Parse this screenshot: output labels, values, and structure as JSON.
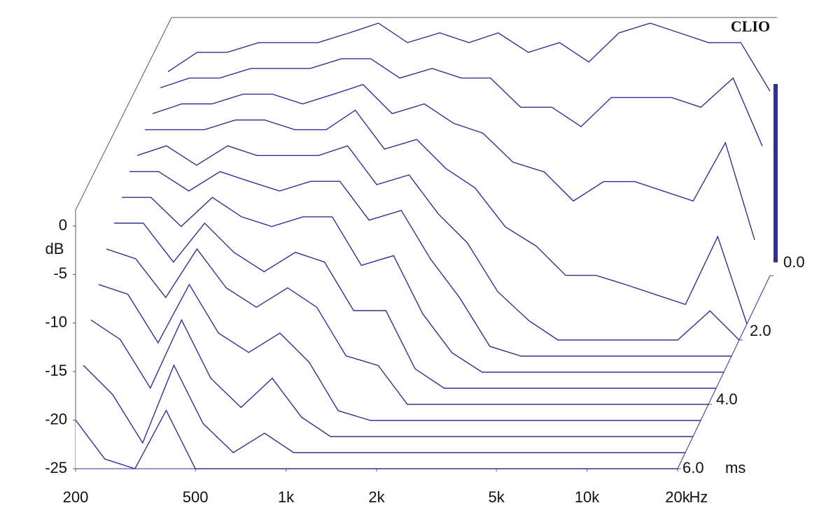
{
  "chart_data": {
    "type": "waterfall",
    "watermark": "CLIO",
    "color": "#2e3192",
    "x_unit": "Hz",
    "y_unit": "dB",
    "z_unit": "ms",
    "log_x": true,
    "x": [
      200,
      250,
      315,
      400,
      500,
      630,
      800,
      1000,
      1250,
      1600,
      2000,
      2500,
      3150,
      4000,
      5000,
      6300,
      8000,
      10000,
      12500,
      16000,
      20000
    ],
    "xlim": [
      200,
      20000
    ],
    "xticks": [
      200,
      500,
      {
        "value": 1000,
        "label": "1k"
      },
      {
        "value": 2000,
        "label": "2k"
      },
      {
        "value": 5000,
        "label": "5k"
      },
      {
        "value": 10000,
        "label": "10k"
      },
      {
        "value": 20000,
        "label": "20k"
      }
    ],
    "ylim": [
      -25,
      0
    ],
    "yticks": [
      0,
      -5,
      -10,
      -15,
      -20,
      -25
    ],
    "zlim": [
      0,
      6
    ],
    "zticks": [
      {
        "value": 0,
        "label": "0.0"
      },
      {
        "value": 2,
        "label": "2.0"
      },
      {
        "value": 4,
        "label": "4.0"
      },
      {
        "value": 6,
        "label": "6.0"
      }
    ],
    "z": [
      0,
      0.5,
      1,
      1.5,
      2,
      2.5,
      3,
      3.5,
      4,
      4.5,
      5,
      5.5,
      6
    ],
    "series": [
      {
        "values": [
          -4,
          -2,
          -2,
          -1,
          -1,
          -1,
          0,
          1,
          -1,
          0,
          -1,
          0,
          -2,
          -1,
          -3,
          0,
          1,
          0,
          -1,
          -1,
          -6
        ]
      },
      {
        "values": [
          -4,
          -3,
          -3,
          -2,
          -2,
          -2,
          -1,
          -1,
          -3,
          -2,
          -3,
          -3,
          -6,
          -6,
          -8,
          -5,
          -5,
          -5,
          -6,
          -3,
          -10
        ]
      },
      {
        "values": [
          -5,
          -4,
          -4,
          -3,
          -3,
          -4,
          -3,
          -2,
          -5,
          -4,
          -6,
          -7,
          -10,
          -11,
          -14,
          -12,
          -12,
          -13,
          -14,
          -8,
          -18
        ]
      },
      {
        "values": [
          -5,
          -5,
          -5,
          -4,
          -4,
          -5,
          -5,
          -3,
          -7,
          -6,
          -9,
          -11,
          -15,
          -17,
          -20,
          -20,
          -21,
          -22,
          -23,
          -16,
          -25
        ]
      },
      {
        "values": [
          -6,
          -5,
          -7,
          -5,
          -6,
          -6,
          -6,
          -5,
          -9,
          -8,
          -12,
          -15,
          -20,
          -23,
          -25,
          -25,
          -25,
          -25,
          -25,
          -22,
          -25
        ]
      },
      {
        "values": [
          -6,
          -6,
          -8,
          -6,
          -7,
          -8,
          -7,
          -7,
          -11,
          -10,
          -15,
          -19,
          -24,
          -25,
          -25,
          -25,
          -25,
          -25,
          -25,
          -25,
          -25
        ]
      },
      {
        "values": [
          -7,
          -7,
          -10,
          -7,
          -9,
          -10,
          -9,
          -9,
          -14,
          -13,
          -19,
          -23,
          -25,
          -25,
          -25,
          -25,
          -25,
          -25,
          -25,
          -25,
          -25
        ]
      },
      {
        "values": [
          -8,
          -8,
          -12,
          -8,
          -11,
          -13,
          -11,
          -12,
          -17,
          -17,
          -23,
          -25,
          -25,
          -25,
          -25,
          -25,
          -25,
          -25,
          -25,
          -25,
          -25
        ]
      },
      {
        "values": [
          -9,
          -10,
          -14,
          -9,
          -13,
          -15,
          -13,
          -15,
          -20,
          -21,
          -25,
          -25,
          -25,
          -25,
          -25,
          -25,
          -25,
          -25,
          -25,
          -25,
          -25
        ]
      },
      {
        "values": [
          -11,
          -12,
          -17,
          -11,
          -16,
          -18,
          -16,
          -19,
          -24,
          -25,
          -25,
          -25,
          -25,
          -25,
          -25,
          -25,
          -25,
          -25,
          -25,
          -25,
          -25
        ]
      },
      {
        "values": [
          -13,
          -15,
          -20,
          -13,
          -19,
          -22,
          -19,
          -23,
          -25,
          -25,
          -25,
          -25,
          -25,
          -25,
          -25,
          -25,
          -25,
          -25,
          -25,
          -25,
          -25
        ]
      },
      {
        "values": [
          -16,
          -19,
          -24,
          -16,
          -22,
          -25,
          -23,
          -25,
          -25,
          -25,
          -25,
          -25,
          -25,
          -25,
          -25,
          -25,
          -25,
          -25,
          -25,
          -25,
          -25
        ]
      },
      {
        "values": [
          -20,
          -24,
          -25,
          -19,
          -25,
          -25,
          -25,
          -25,
          -25,
          -25,
          -25,
          -25,
          -25,
          -25,
          -25,
          -25,
          -25,
          -25,
          -25,
          -25,
          -25
        ]
      }
    ]
  }
}
